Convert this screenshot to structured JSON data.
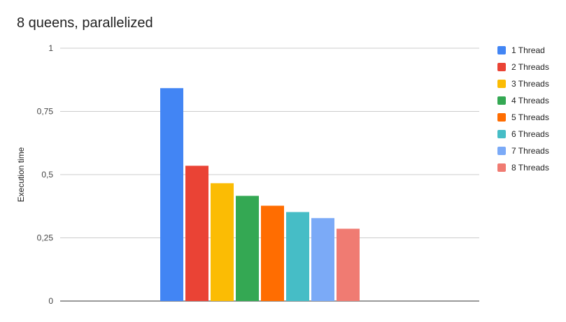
{
  "chart_data": {
    "type": "bar",
    "title": "8 queens, parallelized",
    "xlabel": "",
    "ylabel": "Execution time",
    "ylim": [
      0,
      1
    ],
    "yticks": [
      {
        "value": 0,
        "label": "0"
      },
      {
        "value": 0.25,
        "label": "0,25"
      },
      {
        "value": 0.5,
        "label": "0,5"
      },
      {
        "value": 0.75,
        "label": "0,75"
      },
      {
        "value": 1,
        "label": "1"
      }
    ],
    "grid": true,
    "legend_position": "right",
    "categories": [
      ""
    ],
    "series": [
      {
        "name": "1 Thread",
        "color": "#4285F4",
        "values": [
          0.842
        ]
      },
      {
        "name": "2 Threads",
        "color": "#EA4335",
        "values": [
          0.535
        ]
      },
      {
        "name": "3 Threads",
        "color": "#FBBC04",
        "values": [
          0.466
        ]
      },
      {
        "name": "4 Threads",
        "color": "#34A853",
        "values": [
          0.416
        ]
      },
      {
        "name": "5 Threads",
        "color": "#FF6D01",
        "values": [
          0.377
        ]
      },
      {
        "name": "6 Threads",
        "color": "#46BDC6",
        "values": [
          0.352
        ]
      },
      {
        "name": "7 Threads",
        "color": "#7BAAF7",
        "values": [
          0.328
        ]
      },
      {
        "name": "8 Threads",
        "color": "#F07B72",
        "values": [
          0.286
        ]
      }
    ]
  }
}
